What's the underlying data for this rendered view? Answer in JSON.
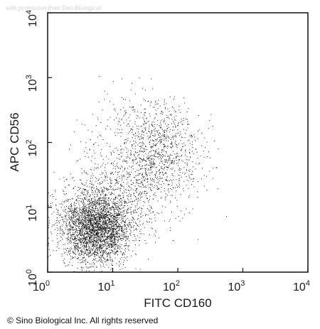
{
  "watermark": "with permission from Sino Biological",
  "copyright": "© Sino Biological Inc. All rights reserved",
  "chart_data": {
    "type": "scatter",
    "title": "",
    "xlabel": "FITC CD160",
    "ylabel": "APC CD56",
    "xscale": "log",
    "yscale": "log",
    "xlim": [
      1,
      10000
    ],
    "ylim": [
      1,
      10000
    ],
    "grid": false,
    "xticks": [
      {
        "value": 1,
        "base": "10",
        "exp": "0"
      },
      {
        "value": 10,
        "base": "10",
        "exp": "1"
      },
      {
        "value": 100,
        "base": "10",
        "exp": "2"
      },
      {
        "value": 1000,
        "base": "10",
        "exp": "3"
      },
      {
        "value": 10000,
        "base": "10",
        "exp": "4"
      }
    ],
    "yticks": [
      {
        "value": 1,
        "base": "10",
        "exp": "0"
      },
      {
        "value": 10,
        "base": "10",
        "exp": "1"
      },
      {
        "value": 100,
        "base": "10",
        "exp": "2"
      },
      {
        "value": 1000,
        "base": "10",
        "exp": "3"
      },
      {
        "value": 10000,
        "base": "10",
        "exp": "4"
      }
    ],
    "populations": [
      {
        "center_x": 5.5,
        "center_y": 5.0,
        "spread_log_x": 0.26,
        "spread_log_y": 0.28,
        "count": 3200
      },
      {
        "center_x": 55,
        "center_y": 75,
        "spread_log_x": 0.33,
        "spread_log_y": 0.28,
        "count": 700
      },
      {
        "center_x": 18,
        "center_y": 22,
        "spread_log_x": 0.45,
        "spread_log_y": 0.4,
        "count": 800
      },
      {
        "center_x": 30,
        "center_y": 250,
        "spread_log_x": 0.4,
        "spread_log_y": 0.25,
        "count": 180
      }
    ],
    "marker_color": "#111111"
  }
}
